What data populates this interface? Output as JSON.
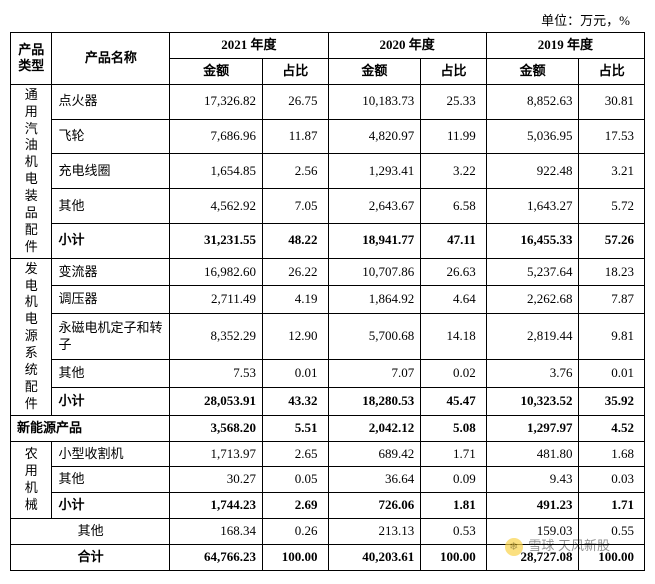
{
  "unit_line": "单位：万元，%",
  "header": {
    "product_type": "产品类型",
    "product_name": "产品名称",
    "years": [
      "2021 年度",
      "2020 年度",
      "2019 年度"
    ],
    "sub": {
      "amount": "金额",
      "percent": "占比"
    }
  },
  "groups": [
    {
      "type_label": "通用汽油机电装品配件",
      "rows": [
        {
          "name": "点火器",
          "v": [
            "17,326.82",
            "26.75",
            "10,183.73",
            "25.33",
            "8,852.63",
            "30.81"
          ],
          "bold": false
        },
        {
          "name": "飞轮",
          "v": [
            "7,686.96",
            "11.87",
            "4,820.97",
            "11.99",
            "5,036.95",
            "17.53"
          ],
          "bold": false
        },
        {
          "name": "充电线圈",
          "v": [
            "1,654.85",
            "2.56",
            "1,293.41",
            "3.22",
            "922.48",
            "3.21"
          ],
          "bold": false
        },
        {
          "name": "其他",
          "v": [
            "4,562.92",
            "7.05",
            "2,643.67",
            "6.58",
            "1,643.27",
            "5.72"
          ],
          "bold": false
        },
        {
          "name": "小计",
          "v": [
            "31,231.55",
            "48.22",
            "18,941.77",
            "47.11",
            "16,455.33",
            "57.26"
          ],
          "bold": true
        }
      ]
    },
    {
      "type_label": "发电机电源系统配件",
      "rows": [
        {
          "name": "变流器",
          "v": [
            "16,982.60",
            "26.22",
            "10,707.86",
            "26.63",
            "5,237.64",
            "18.23"
          ],
          "bold": false
        },
        {
          "name": "调压器",
          "v": [
            "2,711.49",
            "4.19",
            "1,864.92",
            "4.64",
            "2,262.68",
            "7.87"
          ],
          "bold": false
        },
        {
          "name": "永磁电机定子和转子",
          "v": [
            "8,352.29",
            "12.90",
            "5,700.68",
            "14.18",
            "2,819.44",
            "9.81"
          ],
          "bold": false
        },
        {
          "name": "其他",
          "v": [
            "7.53",
            "0.01",
            "7.07",
            "0.02",
            "3.76",
            "0.01"
          ],
          "bold": false
        },
        {
          "name": "小计",
          "v": [
            "28,053.91",
            "43.32",
            "18,280.53",
            "45.47",
            "10,323.52",
            "35.92"
          ],
          "bold": true
        }
      ]
    }
  ],
  "new_energy": {
    "label": "新能源产品",
    "v": [
      "3,568.20",
      "5.51",
      "2,042.12",
      "5.08",
      "1,297.97",
      "4.52"
    ],
    "bold": true
  },
  "agri": {
    "type_label": "农用机械",
    "rows": [
      {
        "name": "小型收割机",
        "v": [
          "1,713.97",
          "2.65",
          "689.42",
          "1.71",
          "481.80",
          "1.68"
        ],
        "bold": false
      },
      {
        "name": "其他",
        "v": [
          "30.27",
          "0.05",
          "36.64",
          "0.09",
          "9.43",
          "0.03"
        ],
        "bold": false
      },
      {
        "name": "小计",
        "v": [
          "1,744.23",
          "2.69",
          "726.06",
          "1.81",
          "491.23",
          "1.71"
        ],
        "bold": true
      }
    ]
  },
  "other_row": {
    "label": "其他",
    "v": [
      "168.34",
      "0.26",
      "213.13",
      "0.53",
      "159.03",
      "0.55"
    ],
    "bold": false
  },
  "total_row": {
    "label": "合计",
    "v": [
      "64,766.23",
      "100.00",
      "40,203.61",
      "100.00",
      "28,727.08",
      "100.00"
    ],
    "bold": true
  },
  "watermark": "雪球 天风新股"
}
